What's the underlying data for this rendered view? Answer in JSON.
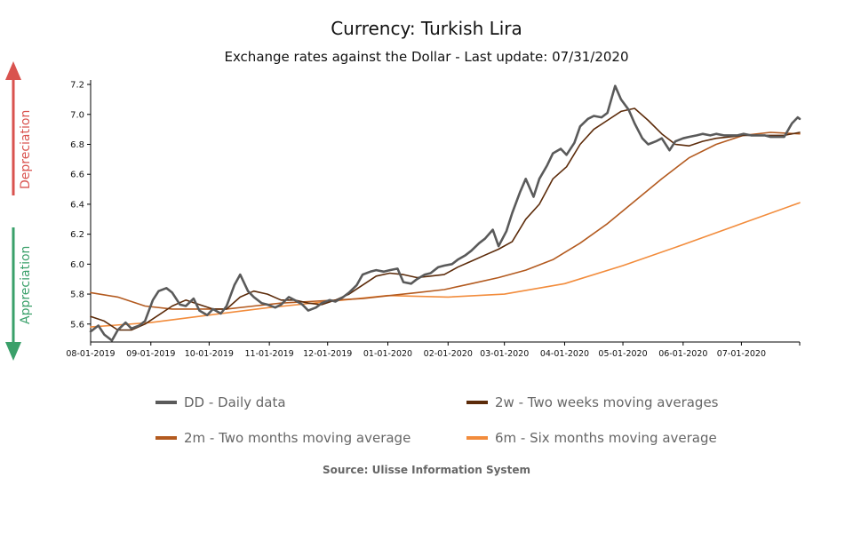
{
  "header": {
    "title": "Currency: Turkish Lira",
    "subtitle": "Exchange rates against the Dollar - Last update: 07/31/2020"
  },
  "side_labels": {
    "depreciation": "Depreciation",
    "appreciation": "Appreciation",
    "depreciation_color": "#d9534f",
    "appreciation_color": "#3aa06a"
  },
  "source": "Source: Ulisse Information System",
  "chart_data": {
    "type": "line",
    "title": "Currency: Turkish Lira",
    "subtitle": "Exchange rates against the Dollar - Last update: 07/31/2020",
    "ylim": [
      5.48,
      7.23
    ],
    "yticks": [
      "5.6",
      "5.8",
      "6.0",
      "6.2",
      "6.4",
      "6.6",
      "6.8",
      "7.0",
      "7.2"
    ],
    "x_range": [
      "08-01-2019",
      "07-31-2020"
    ],
    "xticks": [
      "08-01-2019",
      "09-01-2019",
      "10-01-2019",
      "11-01-2019",
      "12-01-2019",
      "01-01-2020",
      "02-01-2020",
      "03-01-2020",
      "04-01-2020",
      "05-01-2020",
      "06-01-2020",
      "07-01-2020"
    ],
    "grid": false,
    "series": [
      {
        "name": "DD - Daily data",
        "color": "#5a5a5a",
        "x": [
          "2019-08-01",
          "2019-08-05",
          "2019-08-08",
          "2019-08-12",
          "2019-08-15",
          "2019-08-19",
          "2019-08-22",
          "2019-08-26",
          "2019-08-29",
          "2019-09-02",
          "2019-09-05",
          "2019-09-09",
          "2019-09-12",
          "2019-09-16",
          "2019-09-19",
          "2019-09-23",
          "2019-09-26",
          "2019-09-30",
          "2019-10-03",
          "2019-10-07",
          "2019-10-10",
          "2019-10-14",
          "2019-10-17",
          "2019-10-21",
          "2019-10-24",
          "2019-10-28",
          "2019-10-31",
          "2019-11-04",
          "2019-11-07",
          "2019-11-11",
          "2019-11-14",
          "2019-11-18",
          "2019-11-21",
          "2019-11-25",
          "2019-11-28",
          "2019-12-02",
          "2019-12-05",
          "2019-12-09",
          "2019-12-12",
          "2019-12-16",
          "2019-12-19",
          "2019-12-23",
          "2019-12-26",
          "2019-12-30",
          "2020-01-02",
          "2020-01-06",
          "2020-01-09",
          "2020-01-13",
          "2020-01-16",
          "2020-01-20",
          "2020-01-23",
          "2020-01-27",
          "2020-01-30",
          "2020-02-03",
          "2020-02-06",
          "2020-02-10",
          "2020-02-13",
          "2020-02-17",
          "2020-02-20",
          "2020-02-24",
          "2020-02-27",
          "2020-03-02",
          "2020-03-05",
          "2020-03-09",
          "2020-03-12",
          "2020-03-16",
          "2020-03-19",
          "2020-03-23",
          "2020-03-26",
          "2020-03-30",
          "2020-04-02",
          "2020-04-06",
          "2020-04-09",
          "2020-04-13",
          "2020-04-16",
          "2020-04-20",
          "2020-04-23",
          "2020-04-27",
          "2020-04-30",
          "2020-05-04",
          "2020-05-07",
          "2020-05-11",
          "2020-05-14",
          "2020-05-18",
          "2020-05-21",
          "2020-05-25",
          "2020-05-28",
          "2020-06-01",
          "2020-06-04",
          "2020-06-08",
          "2020-06-11",
          "2020-06-15",
          "2020-06-18",
          "2020-06-22",
          "2020-06-25",
          "2020-06-29",
          "2020-07-02",
          "2020-07-06",
          "2020-07-09",
          "2020-07-13",
          "2020-07-16",
          "2020-07-20",
          "2020-07-23",
          "2020-07-27",
          "2020-07-30",
          "2020-07-31"
        ],
        "values": [
          5.55,
          5.59,
          5.53,
          5.49,
          5.56,
          5.61,
          5.57,
          5.59,
          5.62,
          5.76,
          5.82,
          5.84,
          5.81,
          5.73,
          5.72,
          5.77,
          5.69,
          5.66,
          5.7,
          5.67,
          5.72,
          5.86,
          5.93,
          5.82,
          5.78,
          5.74,
          5.73,
          5.71,
          5.73,
          5.78,
          5.76,
          5.73,
          5.69,
          5.71,
          5.74,
          5.76,
          5.75,
          5.78,
          5.81,
          5.86,
          5.93,
          5.95,
          5.96,
          5.95,
          5.96,
          5.97,
          5.88,
          5.87,
          5.9,
          5.93,
          5.94,
          5.98,
          5.99,
          6.0,
          6.03,
          6.06,
          6.09,
          6.14,
          6.17,
          6.23,
          6.12,
          6.22,
          6.34,
          6.48,
          6.57,
          6.45,
          6.57,
          6.66,
          6.74,
          6.77,
          6.73,
          6.81,
          6.92,
          6.97,
          6.99,
          6.98,
          7.01,
          7.19,
          7.1,
          7.03,
          6.94,
          6.84,
          6.8,
          6.82,
          6.84,
          6.76,
          6.82,
          6.84,
          6.85,
          6.86,
          6.87,
          6.86,
          6.87,
          6.86,
          6.86,
          6.86,
          6.87,
          6.86,
          6.86,
          6.86,
          6.85,
          6.85,
          6.85,
          6.94,
          6.98,
          6.97
        ]
      },
      {
        "name": "2w - Two weeks moving averages",
        "color": "#5c2b0a",
        "x": [
          "2019-08-01",
          "2019-08-08",
          "2019-08-15",
          "2019-08-22",
          "2019-08-29",
          "2019-09-05",
          "2019-09-12",
          "2019-09-19",
          "2019-09-26",
          "2019-10-03",
          "2019-10-10",
          "2019-10-17",
          "2019-10-24",
          "2019-10-31",
          "2019-11-07",
          "2019-11-14",
          "2019-11-21",
          "2019-11-28",
          "2019-12-05",
          "2019-12-12",
          "2019-12-19",
          "2019-12-26",
          "2020-01-02",
          "2020-01-09",
          "2020-01-16",
          "2020-01-23",
          "2020-01-30",
          "2020-02-06",
          "2020-02-13",
          "2020-02-20",
          "2020-02-27",
          "2020-03-05",
          "2020-03-12",
          "2020-03-19",
          "2020-03-26",
          "2020-04-02",
          "2020-04-09",
          "2020-04-16",
          "2020-04-23",
          "2020-04-30",
          "2020-05-07",
          "2020-05-14",
          "2020-05-21",
          "2020-05-28",
          "2020-06-04",
          "2020-06-11",
          "2020-06-18",
          "2020-06-25",
          "2020-07-02",
          "2020-07-09",
          "2020-07-16",
          "2020-07-23",
          "2020-07-31"
        ],
        "values": [
          5.65,
          5.62,
          5.56,
          5.56,
          5.6,
          5.66,
          5.72,
          5.76,
          5.73,
          5.7,
          5.7,
          5.78,
          5.82,
          5.8,
          5.76,
          5.76,
          5.74,
          5.73,
          5.76,
          5.8,
          5.86,
          5.92,
          5.94,
          5.93,
          5.91,
          5.92,
          5.93,
          5.98,
          6.02,
          6.06,
          6.1,
          6.15,
          6.3,
          6.4,
          6.57,
          6.65,
          6.8,
          6.9,
          6.96,
          7.02,
          7.04,
          6.96,
          6.87,
          6.8,
          6.79,
          6.82,
          6.84,
          6.85,
          6.86,
          6.86,
          6.86,
          6.86,
          6.88
        ]
      },
      {
        "name": "2m - Two months moving average",
        "color": "#b35a1f",
        "x": [
          "2019-08-01",
          "2019-08-15",
          "2019-08-29",
          "2019-09-12",
          "2019-09-26",
          "2019-10-10",
          "2019-10-24",
          "2019-11-07",
          "2019-11-21",
          "2019-12-05",
          "2019-12-19",
          "2020-01-02",
          "2020-01-16",
          "2020-01-30",
          "2020-02-13",
          "2020-02-27",
          "2020-03-12",
          "2020-03-26",
          "2020-04-09",
          "2020-04-23",
          "2020-05-07",
          "2020-05-21",
          "2020-06-04",
          "2020-06-18",
          "2020-07-02",
          "2020-07-16",
          "2020-07-31"
        ],
        "values": [
          5.81,
          5.78,
          5.72,
          5.7,
          5.7,
          5.7,
          5.72,
          5.74,
          5.75,
          5.76,
          5.77,
          5.79,
          5.81,
          5.83,
          5.87,
          5.91,
          5.96,
          6.03,
          6.14,
          6.27,
          6.42,
          6.57,
          6.71,
          6.8,
          6.86,
          6.88,
          6.87
        ]
      },
      {
        "name": "6m - Six months moving average",
        "color": "#f28c3c",
        "x": [
          "2019-08-01",
          "2019-09-01",
          "2019-10-01",
          "2019-11-01",
          "2019-12-01",
          "2020-01-01",
          "2020-02-01",
          "2020-03-01",
          "2020-04-01",
          "2020-05-01",
          "2020-06-01",
          "2020-07-01",
          "2020-07-31"
        ],
        "values": [
          5.58,
          5.61,
          5.66,
          5.71,
          5.75,
          5.79,
          5.78,
          5.8,
          5.87,
          5.99,
          6.13,
          6.27,
          6.41
        ]
      }
    ]
  }
}
